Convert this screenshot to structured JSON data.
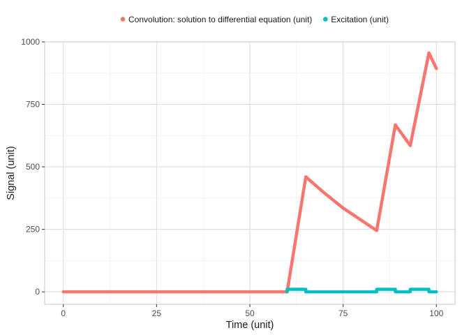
{
  "chart_data": {
    "type": "line",
    "xlabel": "Time (unit)",
    "ylabel": "Signal (unit)",
    "xlim": [
      -5,
      105
    ],
    "ylim": [
      -50,
      1000
    ],
    "x_ticks": [
      0,
      25,
      50,
      75,
      100
    ],
    "y_ticks": [
      0,
      250,
      500,
      750,
      1000
    ],
    "x_minor": [
      12.5,
      37.5,
      62.5,
      87.5
    ],
    "y_minor": [
      125,
      375,
      625,
      875
    ],
    "grid": true,
    "legend_position": "top",
    "series": [
      {
        "name": "Convolution: solution to differential equation (unit)",
        "color": "#F8766D",
        "x": [
          0,
          60,
          65,
          70,
          75,
          80,
          84,
          89,
          93,
          98,
          100
        ],
        "y": [
          0,
          0,
          460,
          395,
          335,
          285,
          245,
          668,
          585,
          956,
          893
        ]
      },
      {
        "name": "Excitation (unit)",
        "color": "#00BFC4",
        "x": [
          60,
          60,
          65,
          65,
          84,
          84,
          89,
          89,
          93,
          93,
          98,
          98,
          100
        ],
        "y": [
          0,
          10,
          10,
          0,
          0,
          10,
          10,
          0,
          0,
          10,
          10,
          0,
          0
        ]
      }
    ]
  }
}
